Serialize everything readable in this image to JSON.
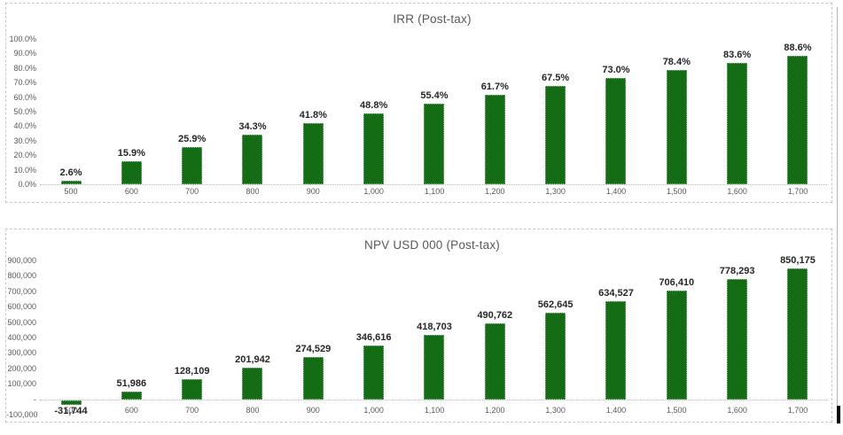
{
  "chart_data": [
    {
      "type": "bar",
      "title": "IRR (Post-tax)",
      "xlabel": "",
      "ylabel": "",
      "ylim": [
        0,
        100
      ],
      "grid": false,
      "legend": "none",
      "bar_color": "#146c14",
      "categories": [
        "500",
        "600",
        "700",
        "800",
        "900",
        "1,000",
        "1,100",
        "1,200",
        "1,300",
        "1,400",
        "1,500",
        "1,600",
        "1,700"
      ],
      "values": [
        2.6,
        15.9,
        25.9,
        34.3,
        41.8,
        48.8,
        55.4,
        61.7,
        67.5,
        73.0,
        78.4,
        83.6,
        88.6
      ],
      "data_labels": [
        "2.6%",
        "15.9%",
        "25.9%",
        "34.3%",
        "41.8%",
        "48.8%",
        "55.4%",
        "61.7%",
        "67.5%",
        "73.0%",
        "78.4%",
        "83.6%",
        "88.6%"
      ],
      "y_ticks": [
        {
          "value": 0,
          "label": "0.0%"
        },
        {
          "value": 10,
          "label": "10.0%"
        },
        {
          "value": 20,
          "label": "20.0%"
        },
        {
          "value": 30,
          "label": "30.0%"
        },
        {
          "value": 40,
          "label": "40.0%"
        },
        {
          "value": 50,
          "label": "50.0%"
        },
        {
          "value": 60,
          "label": "60.0%"
        },
        {
          "value": 70,
          "label": "70.0%"
        },
        {
          "value": 80,
          "label": "80.0%"
        },
        {
          "value": 90,
          "label": "90.0%"
        },
        {
          "value": 100,
          "label": "100.0%"
        }
      ]
    },
    {
      "type": "bar",
      "title": "NPV USD 000 (Post-tax)",
      "xlabel": "",
      "ylabel": "",
      "ylim": [
        -100000,
        900000
      ],
      "grid": false,
      "legend": "none",
      "bar_color": "#146c14",
      "categories": [
        "500",
        "600",
        "700",
        "800",
        "900",
        "1,000",
        "1,100",
        "1,200",
        "1,300",
        "1,400",
        "1,500",
        "1,600",
        "1,700"
      ],
      "values": [
        -31744,
        51986,
        128109,
        201942,
        274529,
        346616,
        418703,
        490762,
        562645,
        634527,
        706410,
        778293,
        850175
      ],
      "data_labels": [
        "-31,744",
        "51,986",
        "128,109",
        "201,942",
        "274,529",
        "346,616",
        "418,703",
        "490,762",
        "562,645",
        "634,527",
        "706,410",
        "778,293",
        "850,175"
      ],
      "y_ticks": [
        {
          "value": -100000,
          "label": "-100,000"
        },
        {
          "value": 0,
          "label": "-"
        },
        {
          "value": 100000,
          "label": "100,000"
        },
        {
          "value": 200000,
          "label": "200,000"
        },
        {
          "value": 300000,
          "label": "300,000"
        },
        {
          "value": 400000,
          "label": "400,000"
        },
        {
          "value": 500000,
          "label": "500,000"
        },
        {
          "value": 600000,
          "label": "600,000"
        },
        {
          "value": 700000,
          "label": "700,000"
        },
        {
          "value": 800000,
          "label": "800,000"
        },
        {
          "value": 900000,
          "label": "900,000"
        }
      ]
    }
  ]
}
